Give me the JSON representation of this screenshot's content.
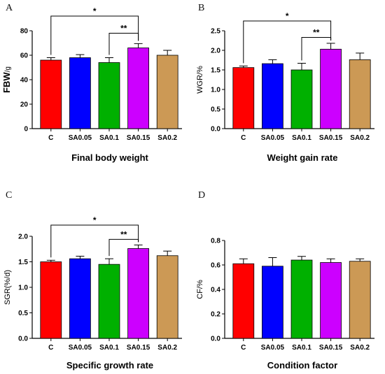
{
  "chart_data": [
    {
      "panel": "A",
      "type": "bar",
      "title": "Final body weight",
      "ylabel_main": "FBW",
      "ylabel_sub": "/g",
      "categories": [
        "C",
        "SA0.05",
        "SA0.1",
        "SA0.15",
        "SA0.2"
      ],
      "values": [
        56,
        58,
        54,
        66,
        60
      ],
      "errors": [
        2,
        2.5,
        4,
        3.5,
        4
      ],
      "ylim": [
        0,
        80
      ],
      "yticks": [
        0,
        20,
        40,
        60,
        80
      ],
      "tick_labels": [
        "0",
        "20",
        "40",
        "60",
        "80"
      ],
      "significance": [
        {
          "from": 0,
          "to": 3,
          "label": "*",
          "level": 92
        },
        {
          "from": 2,
          "to": 3,
          "label": "**",
          "level": 78
        }
      ]
    },
    {
      "panel": "B",
      "type": "bar",
      "title": "Weight gain rate",
      "ylabel_main": "WGR/%",
      "ylabel_sub": "",
      "categories": [
        "C",
        "SA0.05",
        "SA0.1",
        "SA0.15",
        "SA0.2"
      ],
      "values": [
        1.56,
        1.66,
        1.5,
        2.03,
        1.76
      ],
      "errors": [
        0.04,
        0.1,
        0.17,
        0.15,
        0.17
      ],
      "ylim": [
        0,
        2.5
      ],
      "yticks": [
        0,
        0.5,
        1.0,
        1.5,
        2.0,
        2.5
      ],
      "tick_labels": [
        "0.0",
        "0.5",
        "1.0",
        "1.5",
        "2.0",
        "2.5"
      ],
      "significance": [
        {
          "from": 0,
          "to": 3,
          "label": "*",
          "level": 2.75
        },
        {
          "from": 2,
          "to": 3,
          "label": "**",
          "level": 2.33
        }
      ]
    },
    {
      "panel": "C",
      "type": "bar",
      "title": "Specific growth rate",
      "ylabel_main": "SGR(%/d)",
      "ylabel_sub": "",
      "categories": [
        "C",
        "SA0.05",
        "SA0.1",
        "SA0.15",
        "SA0.2"
      ],
      "values": [
        1.5,
        1.56,
        1.45,
        1.76,
        1.62
      ],
      "errors": [
        0.03,
        0.05,
        0.11,
        0.07,
        0.09
      ],
      "ylim": [
        0,
        2.0
      ],
      "yticks": [
        0,
        0.5,
        1.0,
        1.5,
        2.0
      ],
      "tick_labels": [
        "0.0",
        "0.5",
        "1.0",
        "1.5",
        "2.0"
      ],
      "significance": [
        {
          "from": 0,
          "to": 3,
          "label": "*",
          "level": 2.22
        },
        {
          "from": 2,
          "to": 3,
          "label": "**",
          "level": 1.94
        }
      ]
    },
    {
      "panel": "D",
      "type": "bar",
      "title": "Condition factor",
      "ylabel_main": "CF/%",
      "ylabel_sub": "",
      "categories": [
        "C",
        "SA0.05",
        "SA0.1",
        "SA0.15",
        "SA0.2"
      ],
      "values": [
        0.61,
        0.59,
        0.64,
        0.62,
        0.63
      ],
      "errors": [
        0.04,
        0.07,
        0.03,
        0.03,
        0.02
      ],
      "ylim": [
        0,
        0.8
      ],
      "yticks": [
        0,
        0.2,
        0.4,
        0.6,
        0.8
      ],
      "tick_labels": [
        "0.0",
        "0.2",
        "0.4",
        "0.6",
        "0.8"
      ],
      "significance": []
    }
  ],
  "colors": [
    "#ff0000",
    "#0000ff",
    "#00b000",
    "#cc00ff",
    "#cc9955"
  ]
}
